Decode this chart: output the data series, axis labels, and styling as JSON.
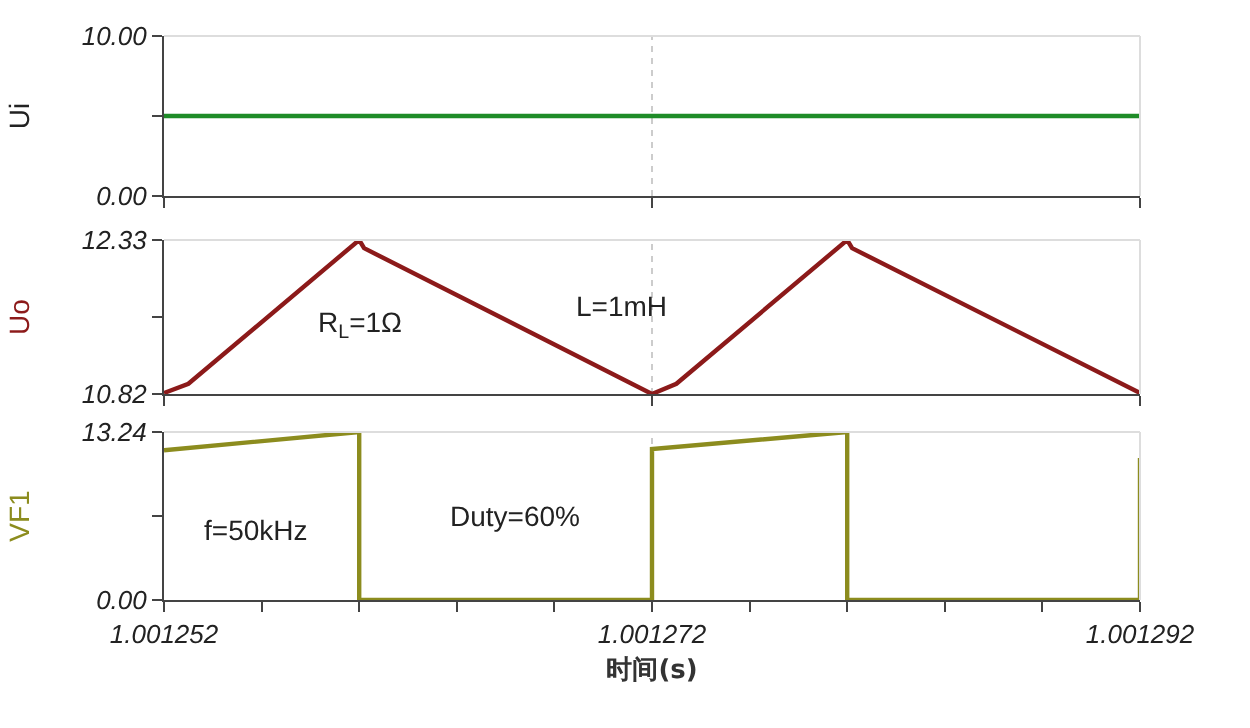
{
  "chart_data": [
    {
      "type": "line",
      "ylabel": "Ui",
      "x": [
        1.001252,
        1.001292
      ],
      "xlim": [
        1.001252,
        1.001292
      ],
      "ylim": [
        0,
        10
      ],
      "yticks": [
        {
          "value": 0,
          "label": "0.00"
        },
        {
          "value": 5,
          "label": null
        },
        {
          "value": 10,
          "label": "10.00"
        }
      ],
      "tick_labels": "y",
      "ref_lines": [
        {
          "axis": "x",
          "value": 1.001272,
          "line_style": "dotted",
          "color": "#cccccc"
        }
      ],
      "xticks": [
        {
          "value": 1.001252,
          "label": null
        },
        {
          "value": 1.001272,
          "label": null
        },
        {
          "value": 1.001292,
          "label": null
        }
      ],
      "series": [
        {
          "color": "#1e8c28",
          "values": [
            5.0,
            5.0
          ]
        }
      ]
    },
    {
      "type": "line",
      "ylabel": "Uo",
      "x": [
        1.001252,
        1.001253,
        1.00126,
        1.0012602,
        1.001272,
        1.001273,
        1.00128,
        1.0012802,
        1.001292
      ],
      "xlim": [
        1.001252,
        1.001292
      ],
      "ylim": [
        10.82,
        12.33
      ],
      "yticks": [
        10.82,
        {
          "value": 11.575,
          "label": null
        },
        12.33
      ],
      "tick_labels": "y",
      "ref_lines": [
        {
          "axis": "x",
          "value": 1.001272,
          "line_style": "dotted",
          "color": "#cccccc"
        }
      ],
      "xticks": [
        {
          "value": 1.001252,
          "label": null
        },
        {
          "value": 1.001272,
          "label": null
        },
        {
          "value": 1.001292,
          "label": null
        }
      ],
      "annotations": [
        "R$_{L}$=1Ω",
        "L=1mH"
      ],
      "series": [
        {
          "color": "#8c1a1a",
          "values": [
            10.83,
            10.92,
            12.33,
            12.25,
            10.82,
            10.92,
            12.33,
            12.25,
            10.83
          ]
        }
      ]
    },
    {
      "type": "line",
      "ylabel": "VF1",
      "xlabel": "时间(s)",
      "x": [
        1.001252,
        1.00126,
        1.00126,
        1.001272,
        1.001272,
        1.00128,
        1.00128,
        1.001292,
        1.001292
      ],
      "xlim": [
        1.001252,
        1.001292
      ],
      "ylim": [
        0,
        13.24
      ],
      "yticks": [
        {
          "value": 0,
          "label": "0.00"
        },
        {
          "value": 6.62,
          "label": null
        },
        13.24
      ],
      "ref_lines": [
        {
          "axis": "x",
          "value": 1.001272,
          "line_style": "dotted",
          "color": "#cccccc"
        }
      ],
      "xticks": [
        1.001252,
        {
          "value": 1.001256,
          "label": null
        },
        {
          "value": 1.00126,
          "label": null
        },
        {
          "value": 1.001264,
          "label": null
        },
        {
          "value": 1.001268,
          "label": null
        },
        1.001272,
        {
          "value": 1.001276,
          "label": null
        },
        {
          "value": 1.00128,
          "label": null
        },
        {
          "value": 1.001284,
          "label": null
        },
        {
          "value": 1.001288,
          "label": null
        },
        1.001292
      ],
      "annotations": [
        "f=50kHz",
        "Duty=60%"
      ],
      "series": [
        {
          "color": "#8c8c1e",
          "values": [
            11.8,
            13.24,
            0,
            0,
            11.9,
            13.24,
            0,
            0,
            11.2
          ]
        }
      ]
    }
  ]
}
